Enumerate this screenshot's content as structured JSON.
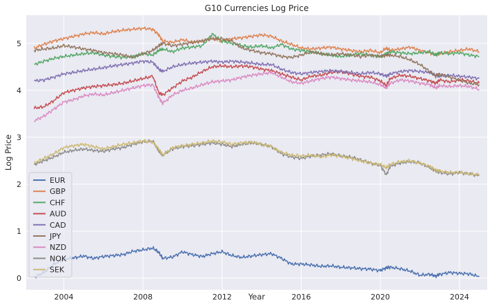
{
  "chart_data": {
    "type": "line",
    "title": "G10 Currencies Log Price",
    "xlabel": "Year",
    "ylabel": "Log Price",
    "xlim": [
      2002.1,
      2025.4
    ],
    "ylim": [
      -0.25,
      5.6
    ],
    "xticks": [
      2004,
      2008,
      2012,
      2016,
      2020,
      2024
    ],
    "yticks": [
      0,
      1,
      2,
      3,
      4,
      5
    ],
    "grid": true,
    "legend_position": "lower-left",
    "x": [
      2002.5,
      2003.0,
      2003.5,
      2004.0,
      2004.5,
      2005.0,
      2005.5,
      2006.0,
      2006.5,
      2007.0,
      2007.5,
      2008.0,
      2008.5,
      2008.8,
      2009.0,
      2009.5,
      2010.0,
      2010.5,
      2011.0,
      2011.5,
      2012.0,
      2012.5,
      2013.0,
      2013.5,
      2014.0,
      2014.5,
      2015.0,
      2015.5,
      2016.0,
      2016.5,
      2017.0,
      2017.5,
      2018.0,
      2018.5,
      2019.0,
      2019.5,
      2020.0,
      2020.3,
      2020.5,
      2021.0,
      2021.5,
      2022.0,
      2022.5,
      2022.8,
      2023.0,
      2023.5,
      2024.0,
      2024.5,
      2025.0
    ],
    "series": [
      {
        "name": "EUR",
        "color": "#4c72b0",
        "values": [
          0.02,
          0.12,
          0.3,
          0.4,
          0.43,
          0.47,
          0.42,
          0.46,
          0.48,
          0.5,
          0.57,
          0.6,
          0.64,
          0.55,
          0.42,
          0.45,
          0.56,
          0.5,
          0.46,
          0.52,
          0.56,
          0.48,
          0.44,
          0.47,
          0.5,
          0.52,
          0.42,
          0.3,
          0.3,
          0.28,
          0.25,
          0.26,
          0.23,
          0.22,
          0.2,
          0.19,
          0.16,
          0.22,
          0.23,
          0.2,
          0.15,
          0.06,
          0.08,
          0.04,
          0.08,
          0.12,
          0.1,
          0.09,
          0.03
        ]
      },
      {
        "name": "GBP",
        "color": "#dd8452",
        "values": [
          4.9,
          4.98,
          5.05,
          5.1,
          5.15,
          5.2,
          5.23,
          5.2,
          5.25,
          5.28,
          5.3,
          5.32,
          5.3,
          5.18,
          5.05,
          5.02,
          5.08,
          5.02,
          5.05,
          5.1,
          5.05,
          5.1,
          5.12,
          5.15,
          5.18,
          5.15,
          5.05,
          4.98,
          4.9,
          4.88,
          4.9,
          4.92,
          4.88,
          4.85,
          4.82,
          4.85,
          4.8,
          4.9,
          4.85,
          4.88,
          4.92,
          4.85,
          4.8,
          4.75,
          4.78,
          4.82,
          4.85,
          4.88,
          4.82
        ]
      },
      {
        "name": "CHF",
        "color": "#55a868",
        "values": [
          4.55,
          4.62,
          4.68,
          4.72,
          4.75,
          4.78,
          4.8,
          4.75,
          4.72,
          4.7,
          4.72,
          4.78,
          4.75,
          4.85,
          4.88,
          4.82,
          4.9,
          4.92,
          4.95,
          5.2,
          5.05,
          5.0,
          4.95,
          4.92,
          4.95,
          4.9,
          4.98,
          4.88,
          4.85,
          4.82,
          4.78,
          4.75,
          4.72,
          4.75,
          4.78,
          4.75,
          4.72,
          4.78,
          4.82,
          4.8,
          4.78,
          4.8,
          4.82,
          4.75,
          4.8,
          4.78,
          4.8,
          4.75,
          4.72
        ]
      },
      {
        "name": "AUD",
        "color": "#c44e52",
        "values": [
          3.62,
          3.65,
          3.78,
          3.95,
          4.0,
          4.05,
          4.08,
          4.1,
          4.12,
          4.15,
          4.2,
          4.25,
          4.3,
          3.95,
          3.9,
          4.05,
          4.2,
          4.28,
          4.4,
          4.5,
          4.52,
          4.5,
          4.52,
          4.5,
          4.45,
          4.42,
          4.35,
          4.28,
          4.22,
          4.3,
          4.32,
          4.38,
          4.4,
          4.35,
          4.3,
          4.28,
          4.2,
          4.1,
          4.25,
          4.32,
          4.3,
          4.25,
          4.2,
          4.15,
          4.22,
          4.18,
          4.22,
          4.2,
          4.15
        ]
      },
      {
        "name": "CAD",
        "color": "#8172b3",
        "values": [
          4.2,
          4.22,
          4.28,
          4.35,
          4.38,
          4.42,
          4.45,
          4.48,
          4.52,
          4.55,
          4.58,
          4.62,
          4.6,
          4.45,
          4.4,
          4.5,
          4.55,
          4.58,
          4.6,
          4.62,
          4.6,
          4.62,
          4.6,
          4.58,
          4.55,
          4.55,
          4.45,
          4.38,
          4.35,
          4.38,
          4.4,
          4.42,
          4.4,
          4.38,
          4.35,
          4.38,
          4.35,
          4.3,
          4.35,
          4.4,
          4.42,
          4.4,
          4.38,
          4.32,
          4.3,
          4.32,
          4.3,
          4.28,
          4.25
        ]
      },
      {
        "name": "JPY",
        "color": "#937860",
        "values": [
          4.85,
          4.88,
          4.9,
          4.95,
          4.92,
          4.88,
          4.85,
          4.8,
          4.78,
          4.75,
          4.7,
          4.78,
          4.85,
          4.95,
          5.0,
          4.95,
          4.98,
          5.02,
          5.05,
          5.1,
          5.1,
          5.05,
          4.9,
          4.85,
          4.8,
          4.78,
          4.72,
          4.7,
          4.75,
          4.82,
          4.78,
          4.75,
          4.78,
          4.75,
          4.72,
          4.75,
          4.72,
          4.75,
          4.75,
          4.72,
          4.65,
          4.55,
          4.4,
          4.3,
          4.35,
          4.28,
          4.22,
          4.15,
          4.12
        ]
      },
      {
        "name": "NZD",
        "color": "#da8bc3",
        "values": [
          3.35,
          3.45,
          3.6,
          3.75,
          3.8,
          3.88,
          3.92,
          3.9,
          3.95,
          4.0,
          4.05,
          4.1,
          4.12,
          3.85,
          3.72,
          3.9,
          4.0,
          4.05,
          4.12,
          4.18,
          4.2,
          4.22,
          4.28,
          4.32,
          4.35,
          4.38,
          4.28,
          4.18,
          4.15,
          4.2,
          4.25,
          4.28,
          4.25,
          4.22,
          4.2,
          4.18,
          4.12,
          4.05,
          4.15,
          4.22,
          4.2,
          4.15,
          4.12,
          4.05,
          4.1,
          4.08,
          4.1,
          4.08,
          4.02
        ]
      },
      {
        "name": "NOK",
        "color": "#8c8c8c",
        "values": [
          2.42,
          2.5,
          2.58,
          2.68,
          2.72,
          2.75,
          2.72,
          2.7,
          2.75,
          2.78,
          2.85,
          2.9,
          2.92,
          2.7,
          2.62,
          2.75,
          2.8,
          2.82,
          2.85,
          2.88,
          2.85,
          2.8,
          2.85,
          2.88,
          2.85,
          2.8,
          2.65,
          2.58,
          2.55,
          2.6,
          2.62,
          2.65,
          2.6,
          2.58,
          2.52,
          2.45,
          2.4,
          2.2,
          2.38,
          2.45,
          2.48,
          2.45,
          2.35,
          2.28,
          2.25,
          2.22,
          2.25,
          2.22,
          2.18
        ]
      },
      {
        "name": "SEK",
        "color": "#ccb974",
        "values": [
          2.45,
          2.55,
          2.65,
          2.78,
          2.82,
          2.85,
          2.8,
          2.75,
          2.8,
          2.85,
          2.88,
          2.92,
          2.9,
          2.75,
          2.62,
          2.78,
          2.82,
          2.85,
          2.88,
          2.92,
          2.9,
          2.85,
          2.88,
          2.9,
          2.85,
          2.8,
          2.68,
          2.62,
          2.6,
          2.62,
          2.58,
          2.62,
          2.6,
          2.55,
          2.5,
          2.45,
          2.42,
          2.35,
          2.42,
          2.48,
          2.5,
          2.45,
          2.38,
          2.3,
          2.28,
          2.25,
          2.25,
          2.22,
          2.2
        ]
      }
    ]
  }
}
